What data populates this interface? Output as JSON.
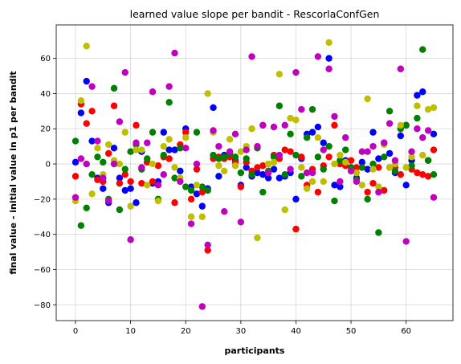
{
  "chart_data": {
    "type": "scatter",
    "title": "learned value slope per bandit - RescorlaConfGen",
    "xlabel": "participants",
    "ylabel": "final value - initial value in p1 per bandit",
    "xlim": [
      -3.5,
      68.5
    ],
    "ylim": [
      -89,
      79
    ],
    "xticks": [
      0,
      10,
      20,
      30,
      40,
      50,
      60
    ],
    "yticks": [
      -80,
      -60,
      -40,
      -20,
      0,
      20,
      40,
      60
    ],
    "grid": true,
    "series": [
      {
        "color": "#0000ff",
        "points": [
          [
            0,
            1
          ],
          [
            1,
            29
          ],
          [
            2,
            47
          ],
          [
            3,
            13
          ],
          [
            4,
            -8
          ],
          [
            5,
            -14
          ],
          [
            6,
            -22
          ],
          [
            7,
            9
          ],
          [
            8,
            -8
          ],
          [
            9,
            -15
          ],
          [
            10,
            -14
          ],
          [
            11,
            -22
          ],
          [
            12,
            7
          ],
          [
            13,
            1
          ],
          [
            14,
            -11
          ],
          [
            15,
            -10
          ],
          [
            16,
            18
          ],
          [
            17,
            8
          ],
          [
            18,
            8
          ],
          [
            19,
            -4
          ],
          [
            20,
            20
          ],
          [
            21,
            -13
          ],
          [
            22,
            -17
          ],
          [
            23,
            -24
          ],
          [
            24,
            -14
          ],
          [
            25,
            32
          ],
          [
            26,
            -7
          ],
          [
            27,
            5
          ],
          [
            28,
            6
          ],
          [
            29,
            2
          ],
          [
            30,
            -12
          ],
          [
            31,
            -2
          ],
          [
            32,
            -7
          ],
          [
            33,
            -5
          ],
          [
            34,
            -6
          ],
          [
            35,
            -8
          ],
          [
            36,
            -3
          ],
          [
            37,
            -8
          ],
          [
            38,
            -7
          ],
          [
            39,
            -5
          ],
          [
            40,
            -20
          ],
          [
            41,
            3
          ],
          [
            42,
            17
          ],
          [
            43,
            18
          ],
          [
            44,
            21
          ],
          [
            45,
            12
          ],
          [
            46,
            60
          ],
          [
            47,
            -12
          ],
          [
            48,
            -13
          ],
          [
            49,
            2
          ],
          [
            50,
            -2
          ],
          [
            51,
            -8
          ],
          [
            52,
            1
          ],
          [
            53,
            -3
          ],
          [
            54,
            18
          ],
          [
            55,
            3
          ],
          [
            56,
            12
          ],
          [
            57,
            6
          ],
          [
            58,
            -5
          ],
          [
            59,
            16
          ],
          [
            60,
            -12
          ],
          [
            61,
            2
          ],
          [
            62,
            39
          ],
          [
            63,
            41
          ],
          [
            64,
            2
          ],
          [
            65,
            17
          ]
        ]
      },
      {
        "color": "#ff0000",
        "points": [
          [
            0,
            -7
          ],
          [
            1,
            34
          ],
          [
            2,
            23
          ],
          [
            3,
            30
          ],
          [
            4,
            -9
          ],
          [
            5,
            -10
          ],
          [
            6,
            6
          ],
          [
            7,
            33
          ],
          [
            8,
            -11
          ],
          [
            9,
            -6
          ],
          [
            10,
            -10
          ],
          [
            11,
            22
          ],
          [
            12,
            -11
          ],
          [
            13,
            1
          ],
          [
            14,
            -10
          ],
          [
            15,
            -1
          ],
          [
            16,
            4
          ],
          [
            17,
            3
          ],
          [
            18,
            -22
          ],
          [
            19,
            11
          ],
          [
            20,
            18
          ],
          [
            21,
            -20
          ],
          [
            22,
            -3
          ],
          [
            23,
            -16
          ],
          [
            24,
            -49
          ],
          [
            25,
            3
          ],
          [
            26,
            4
          ],
          [
            27,
            3
          ],
          [
            28,
            4
          ],
          [
            29,
            1
          ],
          [
            30,
            -13
          ],
          [
            31,
            1
          ],
          [
            32,
            -4
          ],
          [
            33,
            -2
          ],
          [
            34,
            -1
          ],
          [
            35,
            0
          ],
          [
            36,
            5
          ],
          [
            37,
            3
          ],
          [
            38,
            8
          ],
          [
            39,
            7
          ],
          [
            40,
            -37
          ],
          [
            41,
            4
          ],
          [
            42,
            -12
          ],
          [
            43,
            -3
          ],
          [
            44,
            -16
          ],
          [
            45,
            -1
          ],
          [
            46,
            4
          ],
          [
            47,
            22
          ],
          [
            48,
            0
          ],
          [
            49,
            -1
          ],
          [
            50,
            2
          ],
          [
            51,
            -2
          ],
          [
            52,
            -2
          ],
          [
            53,
            -16
          ],
          [
            54,
            -11
          ],
          [
            55,
            -2
          ],
          [
            56,
            -15
          ],
          [
            57,
            -2
          ],
          [
            58,
            -2
          ],
          [
            59,
            -6
          ],
          [
            60,
            22
          ],
          [
            61,
            -3
          ],
          [
            62,
            -5
          ],
          [
            63,
            -6
          ],
          [
            64,
            -7
          ],
          [
            65,
            8
          ]
        ]
      },
      {
        "color": "#008000",
        "points": [
          [
            0,
            13
          ],
          [
            1,
            -35
          ],
          [
            2,
            -25
          ],
          [
            3,
            -6
          ],
          [
            4,
            4
          ],
          [
            5,
            1
          ],
          [
            6,
            -20
          ],
          [
            7,
            43
          ],
          [
            8,
            -26
          ],
          [
            9,
            -3
          ],
          [
            10,
            7
          ],
          [
            11,
            11
          ],
          [
            12,
            -3
          ],
          [
            13,
            3
          ],
          [
            14,
            18
          ],
          [
            15,
            -20
          ],
          [
            16,
            5
          ],
          [
            17,
            35
          ],
          [
            18,
            -8
          ],
          [
            19,
            9
          ],
          [
            20,
            -13
          ],
          [
            21,
            -15
          ],
          [
            22,
            18
          ],
          [
            23,
            -13
          ],
          [
            24,
            -15
          ],
          [
            25,
            5
          ],
          [
            26,
            3
          ],
          [
            27,
            4
          ],
          [
            28,
            6
          ],
          [
            29,
            4
          ],
          [
            30,
            -5
          ],
          [
            31,
            3
          ],
          [
            32,
            -6
          ],
          [
            33,
            9
          ],
          [
            34,
            -16
          ],
          [
            35,
            -4
          ],
          [
            36,
            4
          ],
          [
            37,
            33
          ],
          [
            38,
            -6
          ],
          [
            39,
            17
          ],
          [
            40,
            5
          ],
          [
            41,
            -7
          ],
          [
            42,
            15
          ],
          [
            43,
            31
          ],
          [
            44,
            4
          ],
          [
            45,
            -3
          ],
          [
            46,
            10
          ],
          [
            47,
            -21
          ],
          [
            48,
            2
          ],
          [
            49,
            8
          ],
          [
            50,
            -2
          ],
          [
            51,
            -9
          ],
          [
            52,
            -2
          ],
          [
            53,
            -20
          ],
          [
            54,
            0
          ],
          [
            55,
            -39
          ],
          [
            56,
            4
          ],
          [
            57,
            30
          ],
          [
            58,
            -4
          ],
          [
            59,
            20
          ],
          [
            60,
            22
          ],
          [
            61,
            -1
          ],
          [
            62,
            26
          ],
          [
            63,
            65
          ],
          [
            64,
            2
          ],
          [
            65,
            -6
          ]
        ]
      },
      {
        "color": "#bfbf00",
        "points": [
          [
            0,
            -21
          ],
          [
            1,
            36
          ],
          [
            2,
            67
          ],
          [
            3,
            -17
          ],
          [
            4,
            9
          ],
          [
            5,
            -6
          ],
          [
            6,
            11
          ],
          [
            7,
            2
          ],
          [
            8,
            0
          ],
          [
            9,
            18
          ],
          [
            10,
            -24
          ],
          [
            11,
            8
          ],
          [
            12,
            8
          ],
          [
            13,
            -12
          ],
          [
            14,
            0
          ],
          [
            15,
            -21
          ],
          [
            16,
            10
          ],
          [
            17,
            14
          ],
          [
            18,
            -2
          ],
          [
            19,
            -8
          ],
          [
            20,
            15
          ],
          [
            21,
            -30
          ],
          [
            22,
            -12
          ],
          [
            23,
            -30
          ],
          [
            24,
            40
          ],
          [
            25,
            18
          ],
          [
            26,
            -1
          ],
          [
            27,
            -4
          ],
          [
            28,
            14
          ],
          [
            29,
            -1
          ],
          [
            30,
            7
          ],
          [
            31,
            10
          ],
          [
            32,
            20
          ],
          [
            33,
            -42
          ],
          [
            34,
            22
          ],
          [
            35,
            0
          ],
          [
            36,
            1
          ],
          [
            37,
            51
          ],
          [
            38,
            -26
          ],
          [
            39,
            26
          ],
          [
            40,
            25
          ],
          [
            41,
            -2
          ],
          [
            42,
            -14
          ],
          [
            43,
            -10
          ],
          [
            44,
            15
          ],
          [
            45,
            -10
          ],
          [
            46,
            69
          ],
          [
            47,
            0
          ],
          [
            48,
            5
          ],
          [
            49,
            1
          ],
          [
            50,
            -4
          ],
          [
            51,
            -5
          ],
          [
            52,
            -12
          ],
          [
            53,
            37
          ],
          [
            54,
            -3
          ],
          [
            55,
            -13
          ],
          [
            56,
            11
          ],
          [
            57,
            -2
          ],
          [
            58,
            0
          ],
          [
            59,
            22
          ],
          [
            60,
            -2
          ],
          [
            61,
            4
          ],
          [
            62,
            33
          ],
          [
            63,
            5
          ],
          [
            64,
            31
          ],
          [
            65,
            32
          ]
        ]
      },
      {
        "color": "#bf00bf",
        "points": [
          [
            0,
            -19
          ],
          [
            1,
            3
          ],
          [
            2,
            0
          ],
          [
            3,
            44
          ],
          [
            4,
            13
          ],
          [
            5,
            -8
          ],
          [
            6,
            -21
          ],
          [
            7,
            0
          ],
          [
            8,
            24
          ],
          [
            9,
            52
          ],
          [
            10,
            -43
          ],
          [
            11,
            12
          ],
          [
            12,
            -2
          ],
          [
            13,
            12
          ],
          [
            14,
            41
          ],
          [
            15,
            -12
          ],
          [
            16,
            -6
          ],
          [
            17,
            44
          ],
          [
            18,
            63
          ],
          [
            19,
            -10
          ],
          [
            20,
            9
          ],
          [
            21,
            -34
          ],
          [
            22,
            0
          ],
          [
            23,
            -81
          ],
          [
            24,
            -46
          ],
          [
            25,
            19
          ],
          [
            26,
            10
          ],
          [
            27,
            -27
          ],
          [
            28,
            7
          ],
          [
            29,
            17
          ],
          [
            30,
            -33
          ],
          [
            31,
            8
          ],
          [
            32,
            61
          ],
          [
            33,
            10
          ],
          [
            34,
            22
          ],
          [
            35,
            -5
          ],
          [
            36,
            21
          ],
          [
            37,
            5
          ],
          [
            38,
            22
          ],
          [
            39,
            -3
          ],
          [
            40,
            52
          ],
          [
            41,
            31
          ],
          [
            42,
            -5
          ],
          [
            43,
            -5
          ],
          [
            44,
            61
          ],
          [
            45,
            8
          ],
          [
            46,
            54
          ],
          [
            47,
            27
          ],
          [
            48,
            -10
          ],
          [
            49,
            15
          ],
          [
            50,
            -4
          ],
          [
            51,
            -10
          ],
          [
            52,
            7
          ],
          [
            53,
            7
          ],
          [
            54,
            10
          ],
          [
            55,
            -16
          ],
          [
            56,
            12
          ],
          [
            57,
            23
          ],
          [
            58,
            2
          ],
          [
            59,
            54
          ],
          [
            60,
            -44
          ],
          [
            61,
            7
          ],
          [
            62,
            20
          ],
          [
            63,
            15
          ],
          [
            64,
            19
          ],
          [
            65,
            -19
          ]
        ]
      }
    ]
  }
}
